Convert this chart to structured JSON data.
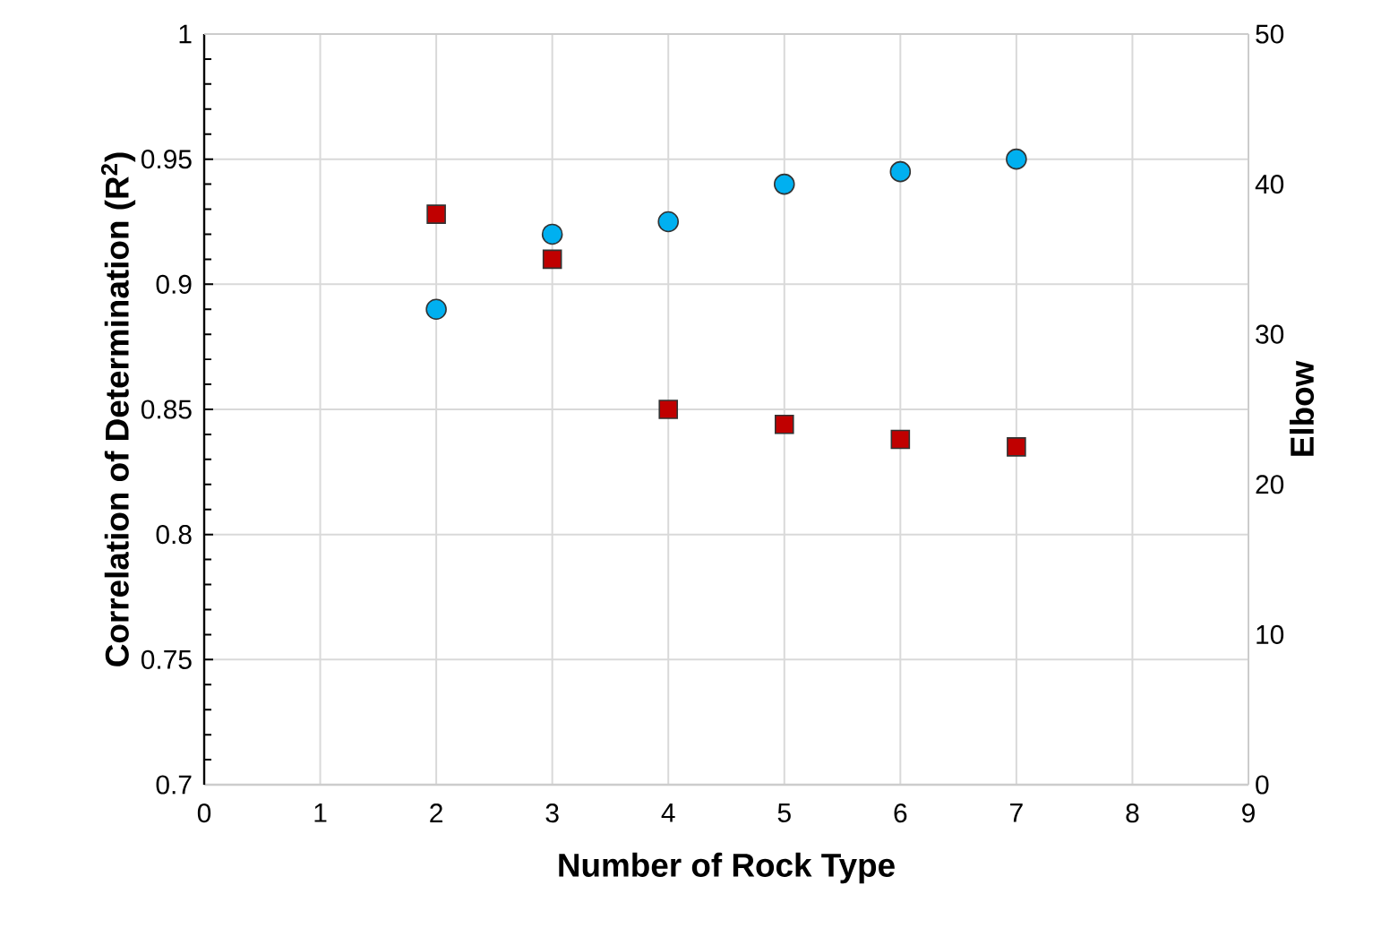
{
  "chart_data": {
    "type": "scatter",
    "xlabel": "Number of Rock Type",
    "ylabel": "Correlation of Determination (R$^{2}$)",
    "y2label": "Elbow",
    "x": [
      2,
      3,
      4,
      5,
      6,
      7
    ],
    "series": [
      {
        "color": "#00b0f0",
        "marker": "circle",
        "values": [
          0.89,
          0.92,
          0.925,
          0.94,
          0.945,
          0.95
        ]
      },
      {
        "color": "#c00000",
        "marker": "square",
        "axis": "y2",
        "values": [
          38,
          35,
          25,
          24,
          23,
          22.5
        ]
      }
    ],
    "xlim": [
      0,
      9
    ],
    "xticks": [
      0,
      1,
      2,
      3,
      4,
      5,
      6,
      7,
      8,
      9
    ],
    "ylim": [
      0.7,
      1
    ],
    "yticks": [
      0.7,
      0.75,
      0.8,
      0.85,
      0.9,
      0.95,
      1
    ],
    "y2lim": [
      0,
      50
    ],
    "y2ticks": [
      0,
      10,
      20,
      30,
      40,
      50
    ],
    "grid": true
  }
}
